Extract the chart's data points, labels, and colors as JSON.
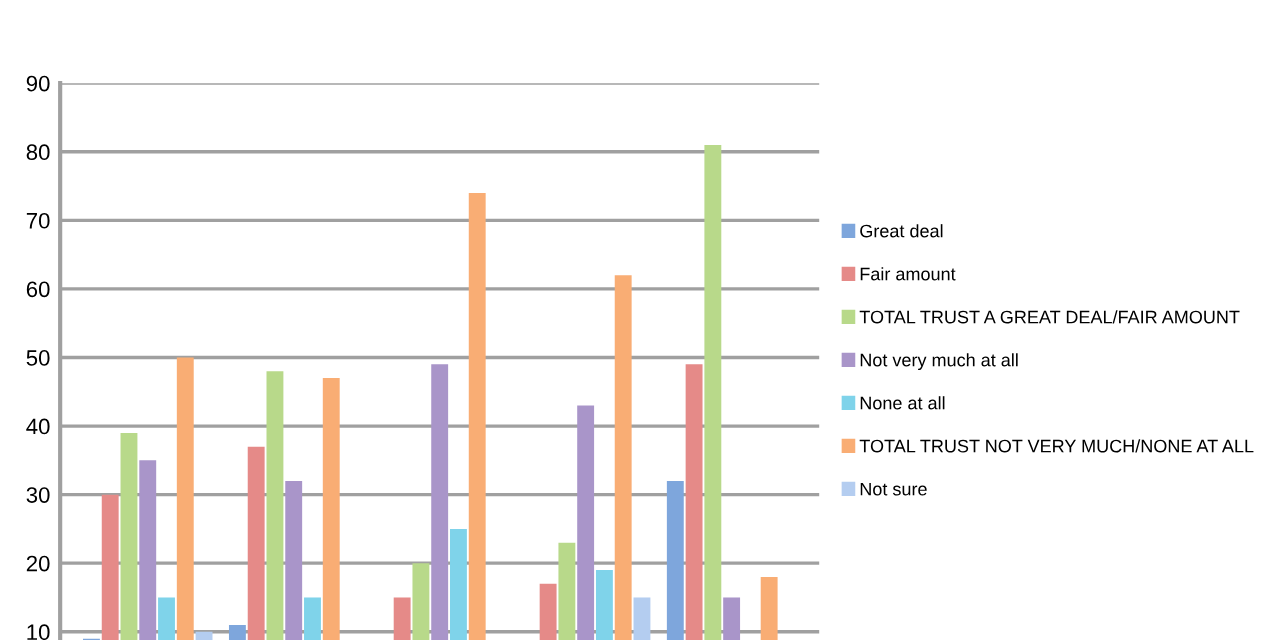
{
  "chart_data": {
    "type": "bar",
    "categories": [
      null,
      null,
      null,
      null,
      null
    ],
    "series": [
      {
        "name": "Great deal",
        "color": "#7ea6dc",
        "values": [
          9,
          11,
          null,
          null,
          32
        ]
      },
      {
        "name": "Fair amount",
        "color": "#e58a88",
        "values": [
          30,
          37,
          15,
          17,
          49
        ]
      },
      {
        "name": "TOTAL TRUST A GREAT DEAL/FAIR AMOUNT",
        "color": "#b8d98a",
        "values": [
          39,
          48,
          20,
          23,
          81
        ]
      },
      {
        "name": "Not very much at all",
        "color": "#a995c9",
        "values": [
          35,
          32,
          49,
          43,
          15
        ]
      },
      {
        "name": "None at all",
        "color": "#7fd3ea",
        "values": [
          15,
          15,
          25,
          19,
          null
        ]
      },
      {
        "name": "TOTAL TRUST NOT VERY MUCH/NONE AT ALL",
        "color": "#f9ad74",
        "values": [
          50,
          47,
          74,
          62,
          18
        ]
      },
      {
        "name": "Not sure",
        "color": "#b4cdf0",
        "values": [
          10,
          null,
          null,
          15,
          null
        ]
      }
    ],
    "ylim": [
      8.8,
      90
    ],
    "yticks": [
      10,
      20,
      30,
      40,
      50,
      60,
      70,
      80,
      90
    ],
    "grid": "y",
    "legend": "right",
    "tick_labels": "y"
  }
}
